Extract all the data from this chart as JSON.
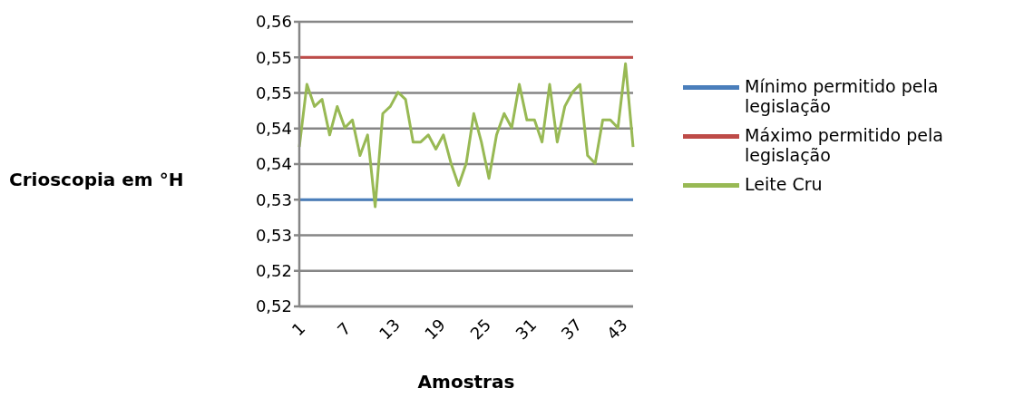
{
  "chart_data": {
    "type": "line",
    "xlabel": "Amostras",
    "ylabel": "Crioscopia em °H",
    "categories": [
      "1",
      null,
      null,
      null,
      null,
      null,
      "7",
      null,
      null,
      null,
      null,
      null,
      "13",
      null,
      null,
      null,
      null,
      null,
      "19",
      null,
      null,
      null,
      null,
      null,
      "25",
      null,
      null,
      null,
      null,
      null,
      "31",
      null,
      null,
      null,
      null,
      null,
      "37",
      null,
      null,
      null,
      null,
      null,
      "43",
      null,
      null
    ],
    "series": [
      {
        "name": "Mínimo permitido pela legislação",
        "color": "#4a7ebb",
        "values": [
          0.53,
          0.53,
          0.53,
          0.53,
          0.53,
          0.53,
          0.53,
          0.53,
          0.53,
          0.53,
          0.53,
          0.53,
          0.53,
          0.53,
          0.53,
          0.53,
          0.53,
          0.53,
          0.53,
          0.53,
          0.53,
          0.53,
          0.53,
          0.53,
          0.53,
          0.53,
          0.53,
          0.53,
          0.53,
          0.53,
          0.53,
          0.53,
          0.53,
          0.53,
          0.53,
          0.53,
          0.53,
          0.53,
          0.53,
          0.53,
          0.53,
          0.53,
          0.53,
          0.53,
          0.53
        ]
      },
      {
        "name": "Máximo permitido pela legislação",
        "color": "#be4b48",
        "values": [
          0.55,
          0.55,
          0.55,
          0.55,
          0.55,
          0.55,
          0.55,
          0.55,
          0.55,
          0.55,
          0.55,
          0.55,
          0.55,
          0.55,
          0.55,
          0.55,
          0.55,
          0.55,
          0.55,
          0.55,
          0.55,
          0.55,
          0.55,
          0.55,
          0.55,
          0.55,
          0.55,
          0.55,
          0.55,
          0.55,
          0.55,
          0.55,
          0.55,
          0.55,
          0.55,
          0.55,
          0.55,
          0.55,
          0.55,
          0.55,
          0.55,
          0.55,
          0.55,
          0.55,
          0.55
        ]
      },
      {
        "name": "Leite Cru",
        "color": "#98b954",
        "values": [
          0.5374,
          0.5462,
          0.5431,
          0.5441,
          0.5391,
          0.5431,
          0.5401,
          0.5412,
          0.5362,
          0.5391,
          0.529,
          0.5421,
          0.5431,
          0.5451,
          0.5441,
          0.5381,
          0.5381,
          0.5391,
          0.5371,
          0.5391,
          0.5351,
          0.532,
          0.5351,
          0.5421,
          0.5381,
          0.533,
          0.5391,
          0.5421,
          0.5401,
          0.5462,
          0.5412,
          0.5412,
          0.5381,
          0.5462,
          0.5381,
          0.5431,
          0.5451,
          0.5462,
          0.5362,
          0.5351,
          0.5412,
          0.5412,
          0.5401,
          0.5491,
          0.5374
        ]
      }
    ],
    "ylim": [
      0.515,
      0.555
    ],
    "yticks": [
      {
        "value": 0.515,
        "label": "0,52"
      },
      {
        "value": 0.52,
        "label": "0,52"
      },
      {
        "value": 0.525,
        "label": "0,53"
      },
      {
        "value": 0.53,
        "label": "0,53"
      },
      {
        "value": 0.535,
        "label": "0,54"
      },
      {
        "value": 0.54,
        "label": "0,54"
      },
      {
        "value": 0.545,
        "label": "0,55"
      },
      {
        "value": 0.55,
        "label": "0,55"
      },
      {
        "value": 0.555,
        "label": "0,56"
      }
    ],
    "grid": "y",
    "legend": "right",
    "marker": "none",
    "line_style": "solid"
  }
}
